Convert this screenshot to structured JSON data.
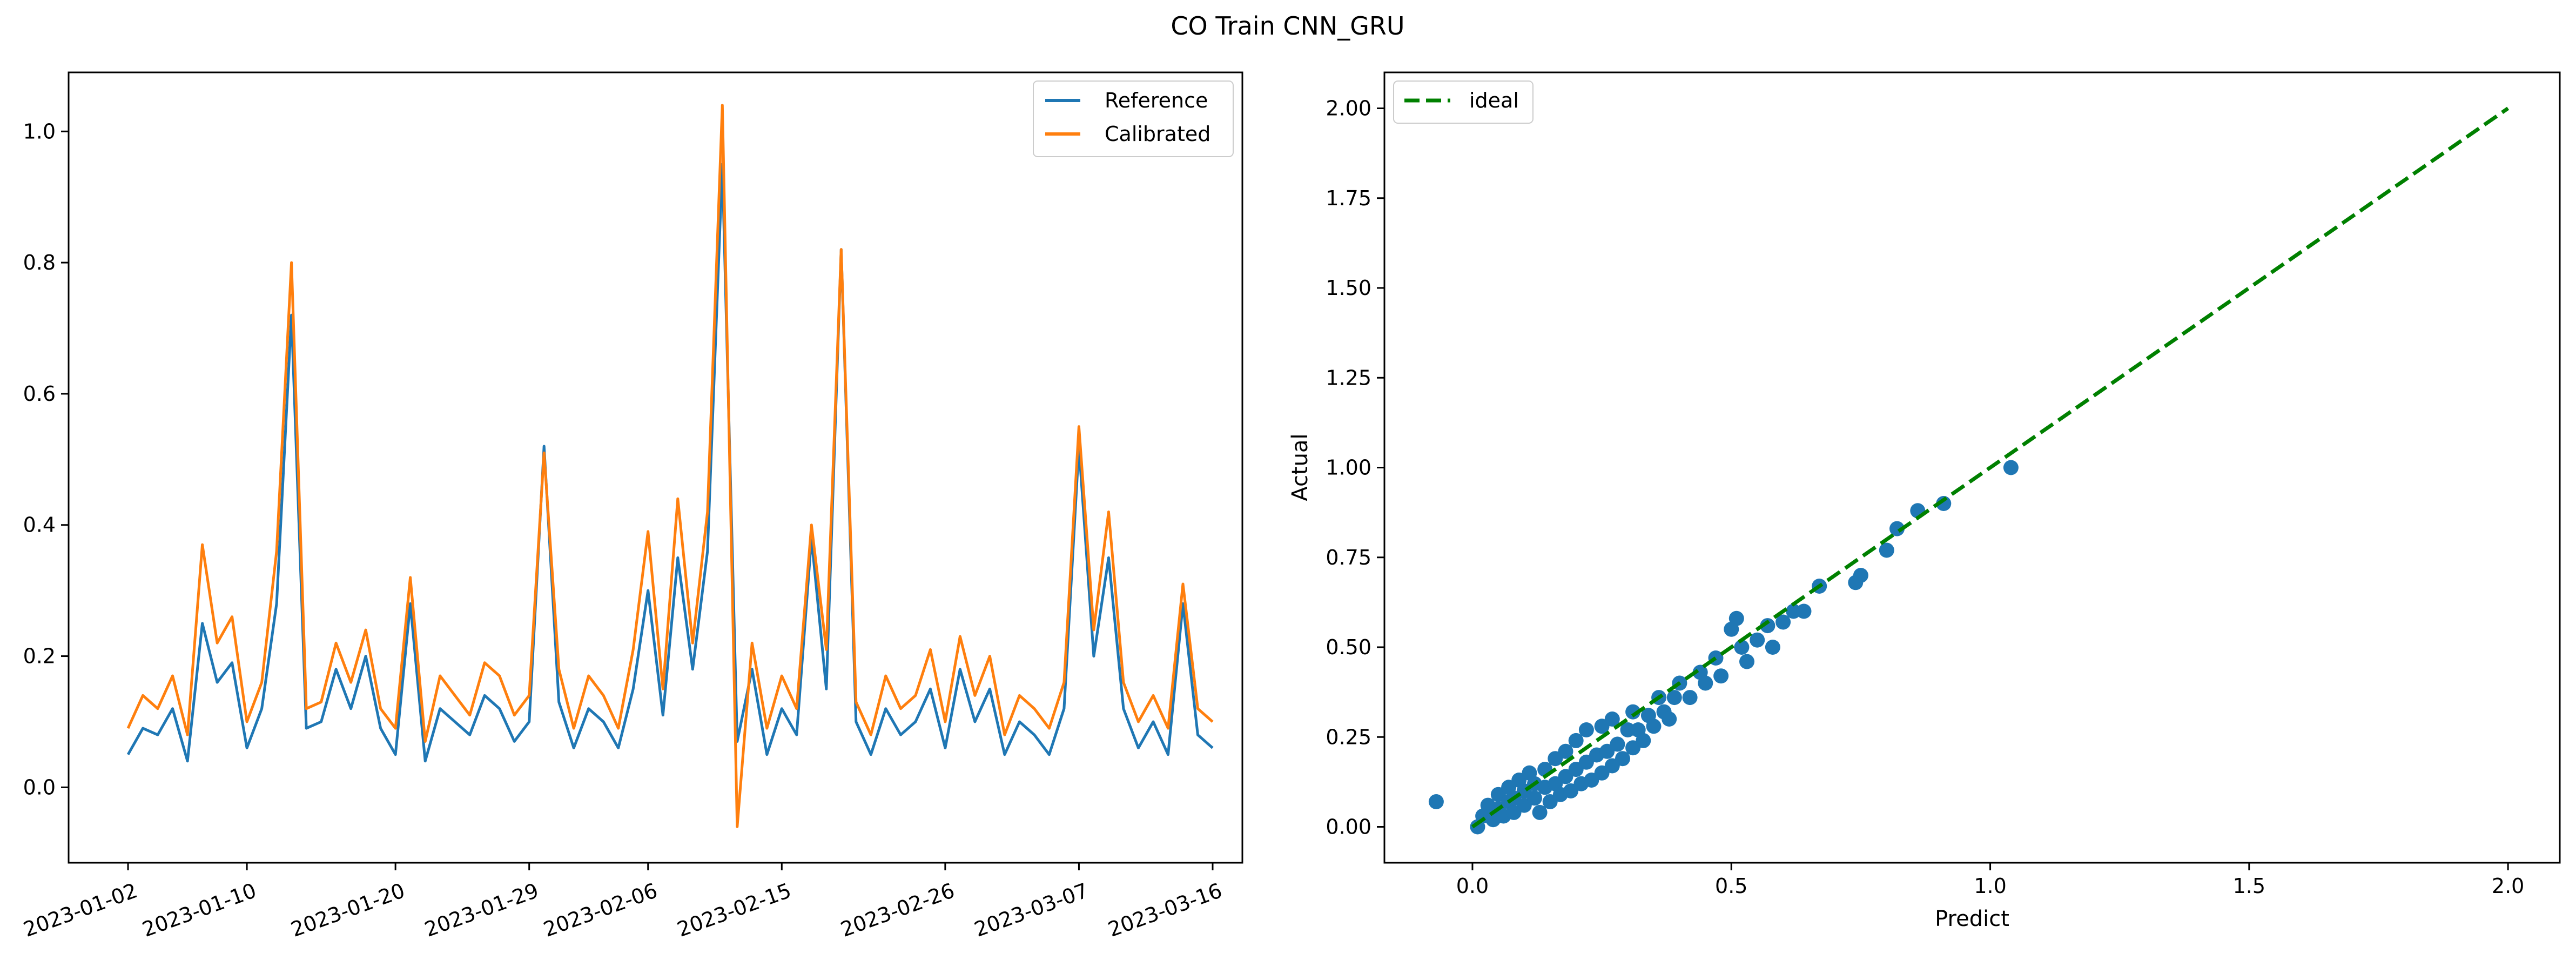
{
  "figure": {
    "title": "CO Train CNN_GRU"
  },
  "colors": {
    "reference": "#1f77b4",
    "calibrated": "#ff7f0e",
    "ideal": "#008000",
    "scatter": "#1f77b4",
    "axes": "#000000"
  },
  "chart_data": [
    {
      "type": "line",
      "title": "",
      "xlabel": "",
      "ylabel": "",
      "x_kind": "date",
      "xlim": [
        "2022-12-29",
        "2023-03-18"
      ],
      "ylim": [
        -0.115,
        1.09
      ],
      "x_ticks": [
        "2023-01-02",
        "2023-01-10",
        "2023-01-20",
        "2023-01-29",
        "2023-02-06",
        "2023-02-15",
        "2023-02-26",
        "2023-03-07",
        "2023-03-16"
      ],
      "y_ticks": [
        "0.0",
        "0.2",
        "0.4",
        "0.6",
        "0.8",
        "1.0"
      ],
      "grid": false,
      "legend": "upper right",
      "series": [
        {
          "name": "Reference",
          "points": [
            [
              "2023-01-02",
              0.05
            ],
            [
              "2023-01-03",
              0.09
            ],
            [
              "2023-01-04",
              0.08
            ],
            [
              "2023-01-05",
              0.12
            ],
            [
              "2023-01-06",
              0.04
            ],
            [
              "2023-01-07",
              0.25
            ],
            [
              "2023-01-08",
              0.16
            ],
            [
              "2023-01-09",
              0.19
            ],
            [
              "2023-01-10",
              0.06
            ],
            [
              "2023-01-11",
              0.12
            ],
            [
              "2023-01-12",
              0.28
            ],
            [
              "2023-01-13",
              0.72
            ],
            [
              "2023-01-14",
              0.09
            ],
            [
              "2023-01-15",
              0.1
            ],
            [
              "2023-01-16",
              0.18
            ],
            [
              "2023-01-17",
              0.12
            ],
            [
              "2023-01-18",
              0.2
            ],
            [
              "2023-01-19",
              0.09
            ],
            [
              "2023-01-20",
              0.05
            ],
            [
              "2023-01-21",
              0.28
            ],
            [
              "2023-01-22",
              0.04
            ],
            [
              "2023-01-23",
              0.12
            ],
            [
              "2023-01-24",
              0.1
            ],
            [
              "2023-01-25",
              0.08
            ],
            [
              "2023-01-26",
              0.14
            ],
            [
              "2023-01-27",
              0.12
            ],
            [
              "2023-01-28",
              0.07
            ],
            [
              "2023-01-29",
              0.1
            ],
            [
              "2023-01-30",
              0.52
            ],
            [
              "2023-01-31",
              0.13
            ],
            [
              "2023-02-01",
              0.06
            ],
            [
              "2023-02-02",
              0.12
            ],
            [
              "2023-02-03",
              0.1
            ],
            [
              "2023-02-04",
              0.06
            ],
            [
              "2023-02-05",
              0.15
            ],
            [
              "2023-02-06",
              0.3
            ],
            [
              "2023-02-07",
              0.11
            ],
            [
              "2023-02-08",
              0.35
            ],
            [
              "2023-02-09",
              0.18
            ],
            [
              "2023-02-10",
              0.36
            ],
            [
              "2023-02-11",
              0.95
            ],
            [
              "2023-02-12",
              0.07
            ],
            [
              "2023-02-13",
              0.18
            ],
            [
              "2023-02-14",
              0.05
            ],
            [
              "2023-02-15",
              0.12
            ],
            [
              "2023-02-16",
              0.08
            ],
            [
              "2023-02-17",
              0.38
            ],
            [
              "2023-02-18",
              0.15
            ],
            [
              "2023-02-19",
              0.82
            ],
            [
              "2023-02-20",
              0.1
            ],
            [
              "2023-02-21",
              0.05
            ],
            [
              "2023-02-22",
              0.12
            ],
            [
              "2023-02-23",
              0.08
            ],
            [
              "2023-02-24",
              0.1
            ],
            [
              "2023-02-25",
              0.15
            ],
            [
              "2023-02-26",
              0.06
            ],
            [
              "2023-02-27",
              0.18
            ],
            [
              "2023-02-28",
              0.1
            ],
            [
              "2023-03-01",
              0.15
            ],
            [
              "2023-03-02",
              0.05
            ],
            [
              "2023-03-03",
              0.1
            ],
            [
              "2023-03-04",
              0.08
            ],
            [
              "2023-03-05",
              0.05
            ],
            [
              "2023-03-06",
              0.12
            ],
            [
              "2023-03-07",
              0.52
            ],
            [
              "2023-03-08",
              0.2
            ],
            [
              "2023-03-09",
              0.35
            ],
            [
              "2023-03-10",
              0.12
            ],
            [
              "2023-03-11",
              0.06
            ],
            [
              "2023-03-12",
              0.1
            ],
            [
              "2023-03-13",
              0.05
            ],
            [
              "2023-03-14",
              0.28
            ],
            [
              "2023-03-15",
              0.08
            ],
            [
              "2023-03-16",
              0.06
            ]
          ]
        },
        {
          "name": "Calibrated",
          "points": [
            [
              "2023-01-02",
              0.09
            ],
            [
              "2023-01-03",
              0.14
            ],
            [
              "2023-01-04",
              0.12
            ],
            [
              "2023-01-05",
              0.17
            ],
            [
              "2023-01-06",
              0.08
            ],
            [
              "2023-01-07",
              0.37
            ],
            [
              "2023-01-08",
              0.22
            ],
            [
              "2023-01-09",
              0.26
            ],
            [
              "2023-01-10",
              0.1
            ],
            [
              "2023-01-11",
              0.16
            ],
            [
              "2023-01-12",
              0.36
            ],
            [
              "2023-01-13",
              0.8
            ],
            [
              "2023-01-14",
              0.12
            ],
            [
              "2023-01-15",
              0.13
            ],
            [
              "2023-01-16",
              0.22
            ],
            [
              "2023-01-17",
              0.16
            ],
            [
              "2023-01-18",
              0.24
            ],
            [
              "2023-01-19",
              0.12
            ],
            [
              "2023-01-20",
              0.09
            ],
            [
              "2023-01-21",
              0.32
            ],
            [
              "2023-01-22",
              0.07
            ],
            [
              "2023-01-23",
              0.17
            ],
            [
              "2023-01-24",
              0.14
            ],
            [
              "2023-01-25",
              0.11
            ],
            [
              "2023-01-26",
              0.19
            ],
            [
              "2023-01-27",
              0.17
            ],
            [
              "2023-01-28",
              0.11
            ],
            [
              "2023-01-29",
              0.14
            ],
            [
              "2023-01-30",
              0.51
            ],
            [
              "2023-01-31",
              0.18
            ],
            [
              "2023-02-01",
              0.09
            ],
            [
              "2023-02-02",
              0.17
            ],
            [
              "2023-02-03",
              0.14
            ],
            [
              "2023-02-04",
              0.09
            ],
            [
              "2023-02-05",
              0.21
            ],
            [
              "2023-02-06",
              0.39
            ],
            [
              "2023-02-07",
              0.15
            ],
            [
              "2023-02-08",
              0.44
            ],
            [
              "2023-02-09",
              0.22
            ],
            [
              "2023-02-10",
              0.42
            ],
            [
              "2023-02-11",
              1.04
            ],
            [
              "2023-02-12",
              -0.06
            ],
            [
              "2023-02-13",
              0.22
            ],
            [
              "2023-02-14",
              0.09
            ],
            [
              "2023-02-15",
              0.17
            ],
            [
              "2023-02-16",
              0.12
            ],
            [
              "2023-02-17",
              0.4
            ],
            [
              "2023-02-18",
              0.21
            ],
            [
              "2023-02-19",
              0.82
            ],
            [
              "2023-02-20",
              0.13
            ],
            [
              "2023-02-21",
              0.08
            ],
            [
              "2023-02-22",
              0.17
            ],
            [
              "2023-02-23",
              0.12
            ],
            [
              "2023-02-24",
              0.14
            ],
            [
              "2023-02-25",
              0.21
            ],
            [
              "2023-02-26",
              0.1
            ],
            [
              "2023-02-27",
              0.23
            ],
            [
              "2023-02-28",
              0.14
            ],
            [
              "2023-03-01",
              0.2
            ],
            [
              "2023-03-02",
              0.08
            ],
            [
              "2023-03-03",
              0.14
            ],
            [
              "2023-03-04",
              0.12
            ],
            [
              "2023-03-05",
              0.09
            ],
            [
              "2023-03-06",
              0.16
            ],
            [
              "2023-03-07",
              0.55
            ],
            [
              "2023-03-08",
              0.24
            ],
            [
              "2023-03-09",
              0.42
            ],
            [
              "2023-03-10",
              0.16
            ],
            [
              "2023-03-11",
              0.1
            ],
            [
              "2023-03-12",
              0.14
            ],
            [
              "2023-03-13",
              0.09
            ],
            [
              "2023-03-14",
              0.31
            ],
            [
              "2023-03-15",
              0.12
            ],
            [
              "2023-03-16",
              0.1
            ]
          ]
        }
      ]
    },
    {
      "type": "scatter",
      "title": "",
      "xlabel": "Predict",
      "ylabel": "Actual",
      "xlim": [
        -0.17,
        2.1
      ],
      "ylim": [
        -0.1,
        2.1
      ],
      "x_ticks": [
        "0.0",
        "0.5",
        "1.0",
        "1.5",
        "2.0"
      ],
      "y_ticks": [
        "0.00",
        "0.25",
        "0.50",
        "0.75",
        "1.00",
        "1.25",
        "1.50",
        "1.75",
        "2.00"
      ],
      "grid": false,
      "legend": "upper left",
      "ideal": {
        "name": "ideal",
        "x": [
          0,
          2
        ],
        "y": [
          0,
          2
        ],
        "style": "dashed"
      },
      "points": [
        [
          -0.07,
          0.07
        ],
        [
          0.01,
          0.0
        ],
        [
          0.02,
          0.03
        ],
        [
          0.03,
          0.06
        ],
        [
          0.04,
          0.02
        ],
        [
          0.05,
          0.05
        ],
        [
          0.05,
          0.09
        ],
        [
          0.06,
          0.03
        ],
        [
          0.07,
          0.07
        ],
        [
          0.07,
          0.11
        ],
        [
          0.08,
          0.04
        ],
        [
          0.08,
          0.08
        ],
        [
          0.09,
          0.13
        ],
        [
          0.1,
          0.06
        ],
        [
          0.1,
          0.1
        ],
        [
          0.11,
          0.15
        ],
        [
          0.12,
          0.08
        ],
        [
          0.12,
          0.12
        ],
        [
          0.13,
          0.04
        ],
        [
          0.14,
          0.11
        ],
        [
          0.14,
          0.16
        ],
        [
          0.15,
          0.07
        ],
        [
          0.16,
          0.12
        ],
        [
          0.16,
          0.19
        ],
        [
          0.17,
          0.09
        ],
        [
          0.18,
          0.14
        ],
        [
          0.18,
          0.21
        ],
        [
          0.19,
          0.1
        ],
        [
          0.2,
          0.16
        ],
        [
          0.2,
          0.24
        ],
        [
          0.21,
          0.12
        ],
        [
          0.22,
          0.18
        ],
        [
          0.22,
          0.27
        ],
        [
          0.23,
          0.13
        ],
        [
          0.24,
          0.2
        ],
        [
          0.25,
          0.15
        ],
        [
          0.25,
          0.28
        ],
        [
          0.26,
          0.21
        ],
        [
          0.27,
          0.17
        ],
        [
          0.27,
          0.3
        ],
        [
          0.28,
          0.23
        ],
        [
          0.29,
          0.19
        ],
        [
          0.3,
          0.27
        ],
        [
          0.31,
          0.22
        ],
        [
          0.31,
          0.32
        ],
        [
          0.32,
          0.27
        ],
        [
          0.33,
          0.24
        ],
        [
          0.34,
          0.31
        ],
        [
          0.35,
          0.28
        ],
        [
          0.36,
          0.36
        ],
        [
          0.37,
          0.32
        ],
        [
          0.38,
          0.3
        ],
        [
          0.39,
          0.36
        ],
        [
          0.4,
          0.4
        ],
        [
          0.42,
          0.36
        ],
        [
          0.44,
          0.43
        ],
        [
          0.45,
          0.4
        ],
        [
          0.47,
          0.47
        ],
        [
          0.48,
          0.42
        ],
        [
          0.5,
          0.55
        ],
        [
          0.51,
          0.58
        ],
        [
          0.52,
          0.5
        ],
        [
          0.53,
          0.46
        ],
        [
          0.55,
          0.52
        ],
        [
          0.57,
          0.56
        ],
        [
          0.58,
          0.5
        ],
        [
          0.6,
          0.57
        ],
        [
          0.62,
          0.6
        ],
        [
          0.64,
          0.6
        ],
        [
          0.67,
          0.67
        ],
        [
          0.74,
          0.68
        ],
        [
          0.75,
          0.7
        ],
        [
          0.8,
          0.77
        ],
        [
          0.82,
          0.83
        ],
        [
          0.86,
          0.88
        ],
        [
          0.91,
          0.9
        ],
        [
          1.04,
          1.0
        ]
      ]
    }
  ]
}
